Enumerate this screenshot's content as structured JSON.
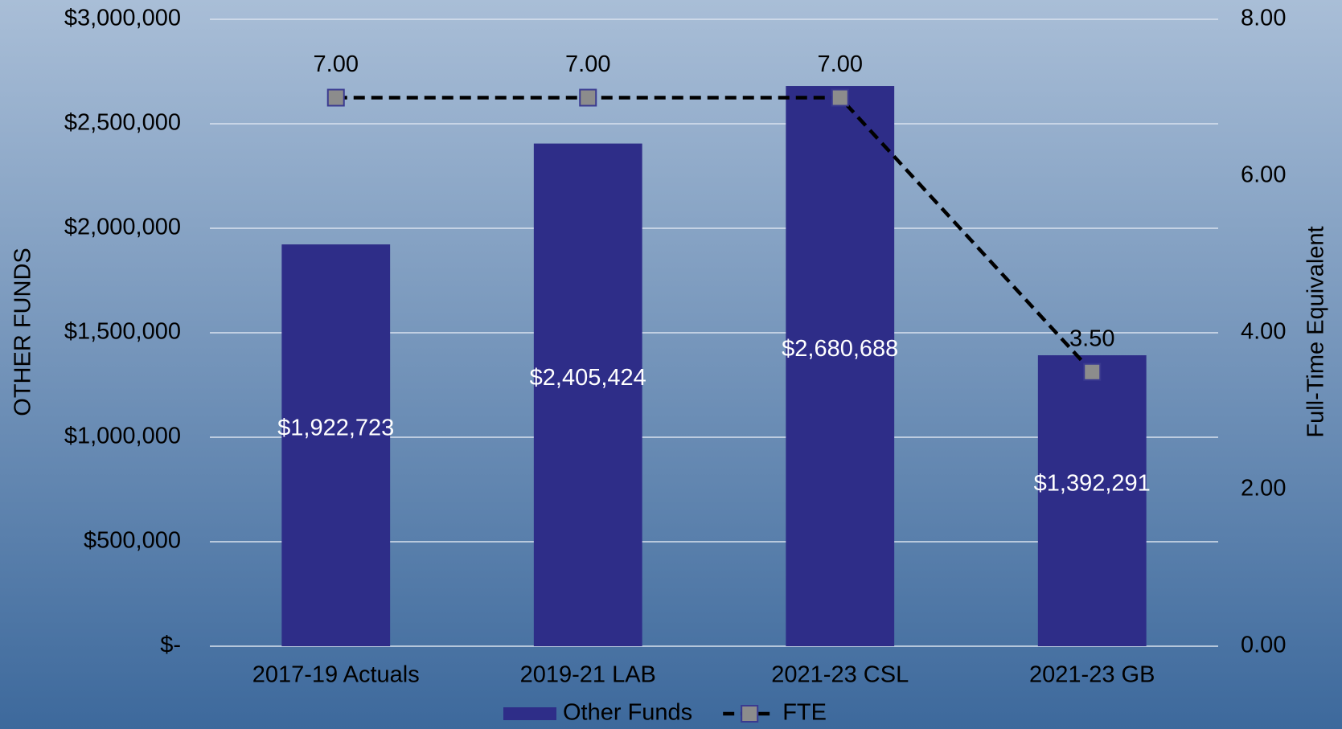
{
  "chart_data": {
    "type": "bar",
    "categories": [
      "2017-19 Actuals",
      "2019-21 LAB",
      "2021-23 CSL",
      "2021-23 GB"
    ],
    "series": [
      {
        "name": "Other Funds",
        "color": "#2e2d88",
        "values": [
          1922723,
          2405424,
          2680688,
          1392291
        ],
        "value_labels": [
          "$1,922,723",
          "$2,405,424",
          "$2,680,688",
          "$1,392,291"
        ]
      },
      {
        "name": "FTE",
        "type": "line",
        "axis": "y2",
        "color": "#000000",
        "marker_color": "#8c8c8c",
        "marker_edge": "#3a3a90",
        "values": [
          7,
          7,
          7,
          3.5
        ],
        "value_labels": [
          "7.00",
          "7.00",
          "7.00",
          "3.50"
        ]
      }
    ],
    "ylabel": "OTHER FUNDS",
    "y2label": "Full-Time Equivalent",
    "ylim": [
      0,
      3000000
    ],
    "yticks": [
      {
        "value": 0,
        "label": "$-"
      },
      {
        "value": 500000,
        "label": "$500,000"
      },
      {
        "value": 1000000,
        "label": "$1,000,000"
      },
      {
        "value": 1500000,
        "label": "$1,500,000"
      },
      {
        "value": 2000000,
        "label": "$2,000,000"
      },
      {
        "value": 2500000,
        "label": "$2,500,000"
      },
      {
        "value": 3000000,
        "label": "$3,000,000"
      }
    ],
    "y2lim": [
      0,
      8
    ],
    "y2ticks": [
      {
        "value": 0,
        "label": "0.00"
      },
      {
        "value": 2,
        "label": "2.00"
      },
      {
        "value": 4,
        "label": "4.00"
      },
      {
        "value": 6,
        "label": "6.00"
      },
      {
        "value": 8,
        "label": "8.00"
      }
    ],
    "grid": true,
    "legend": "bottom"
  }
}
